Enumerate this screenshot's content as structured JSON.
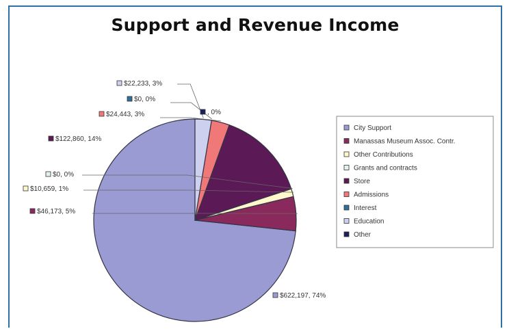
{
  "chart_data": {
    "type": "pie",
    "title": "Support and Revenue Income",
    "slices": [
      {
        "name": "City Support",
        "value": 622197,
        "percent": 74,
        "label": "$622,197, 74%",
        "color": "#9a9bd3"
      },
      {
        "name": "Manassas Museum Assoc. Contr.",
        "value": 46173,
        "percent": 5,
        "label": "$46,173, 5%",
        "color": "#8a2a5c"
      },
      {
        "name": "Other Contributions",
        "value": 10659,
        "percent": 1,
        "label": "$10,659, 1%",
        "color": "#fff8cc"
      },
      {
        "name": "Grants and contracts",
        "value": 0,
        "percent": 0,
        "label": "$0, 0%",
        "color": "#e2f2f2"
      },
      {
        "name": "Store",
        "value": 122860,
        "percent": 14,
        "label": "$122,860, 14%",
        "color": "#5b1a55"
      },
      {
        "name": "Admissions",
        "value": 24443,
        "percent": 3,
        "label": "$24,443, 3%",
        "color": "#f07878"
      },
      {
        "name": "Interest",
        "value": 0,
        "percent": 0,
        "label": "$0, 0%",
        "color": "#2f6f9a"
      },
      {
        "name": "Education",
        "value": 22233,
        "percent": 3,
        "label": "$22,233, 3%",
        "color": "#cdd0ee"
      },
      {
        "name": "Other",
        "value": 0,
        "percent": 0,
        "label": ", 0%",
        "color": "#1b1f5e"
      }
    ],
    "legend_position": "right"
  }
}
